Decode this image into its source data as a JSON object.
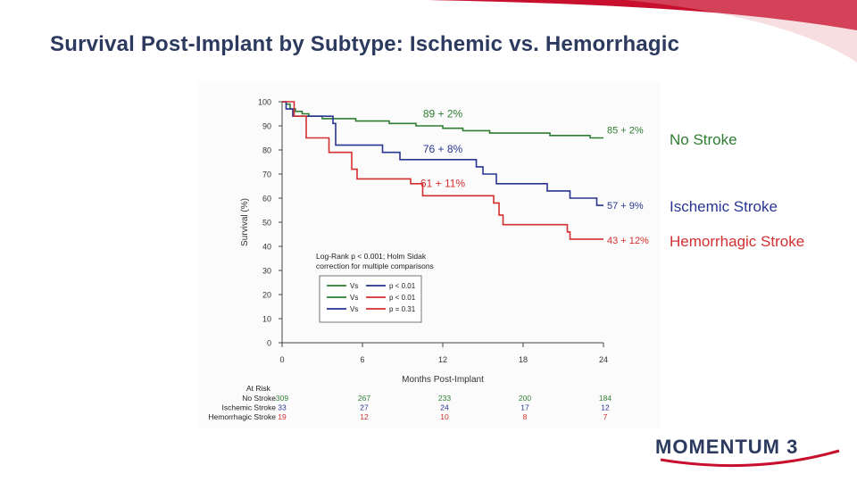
{
  "slide": {
    "title": "Survival Post-Implant by Subtype: Ischemic vs. Hemorrhagic",
    "logo_text": "MOMENTUM 3",
    "accent_color": "#c8102e",
    "logo_color": "#2b3a5e"
  },
  "chart_data": {
    "type": "line",
    "subtype": "kaplan-meier",
    "xlabel": "Months Post-Implant",
    "ylabel": "Survival (%)",
    "xlim": [
      0,
      24
    ],
    "ylim": [
      0,
      100
    ],
    "x_ticks": [
      0,
      6,
      12,
      18,
      24
    ],
    "y_ticks": [
      0,
      10,
      20,
      30,
      40,
      50,
      60,
      70,
      80,
      90,
      100
    ],
    "series": [
      {
        "name": "No Stroke",
        "color": "#2e7d32",
        "side_label_color": "#2e7d32",
        "steps": [
          [
            0,
            100
          ],
          [
            0.3,
            99
          ],
          [
            0.6,
            97
          ],
          [
            1.0,
            96
          ],
          [
            1.5,
            95
          ],
          [
            2.0,
            94
          ],
          [
            3.0,
            93
          ],
          [
            5.5,
            92
          ],
          [
            8.0,
            91
          ],
          [
            10.0,
            90
          ],
          [
            12.0,
            89
          ],
          [
            13.5,
            88
          ],
          [
            15.5,
            87
          ],
          [
            20.0,
            86
          ],
          [
            23.0,
            85
          ],
          [
            24.0,
            85
          ]
        ],
        "annotations": [
          {
            "text": "89 + 2%",
            "x": 12,
            "y": 89
          },
          {
            "text": "85 + 2%",
            "x": 24,
            "y": 85
          }
        ]
      },
      {
        "name": "Ischemic Stroke",
        "color": "#283593",
        "side_label_color": "#283593",
        "steps": [
          [
            0,
            100
          ],
          [
            0.3,
            97
          ],
          [
            0.8,
            94
          ],
          [
            3.8,
            91
          ],
          [
            4.0,
            82
          ],
          [
            7.5,
            79
          ],
          [
            8.8,
            76
          ],
          [
            12.0,
            76
          ],
          [
            14.5,
            73
          ],
          [
            15.0,
            70
          ],
          [
            16.0,
            66
          ],
          [
            19.8,
            63
          ],
          [
            21.5,
            60
          ],
          [
            23.5,
            57
          ],
          [
            24.0,
            57
          ]
        ],
        "annotations": [
          {
            "text": "76 + 8%",
            "x": 12,
            "y": 76
          },
          {
            "text": "57 + 9%",
            "x": 24,
            "y": 57
          }
        ]
      },
      {
        "name": "Hemorrhagic Stroke",
        "color": "#d32f2f",
        "side_label_color": "#d32f2f",
        "steps": [
          [
            0,
            100
          ],
          [
            0.9,
            94
          ],
          [
            1.8,
            85
          ],
          [
            3.5,
            79
          ],
          [
            5.2,
            72
          ],
          [
            5.6,
            68
          ],
          [
            9.6,
            66
          ],
          [
            10.5,
            61
          ],
          [
            15.8,
            58
          ],
          [
            16.2,
            53
          ],
          [
            16.5,
            49
          ],
          [
            21.3,
            46
          ],
          [
            21.5,
            43
          ],
          [
            24.0,
            43
          ]
        ],
        "annotations": [
          {
            "text": "61 + 11%",
            "x": 12,
            "y": 61
          },
          {
            "text": "43 + 12%",
            "x": 24,
            "y": 43
          }
        ]
      }
    ],
    "stats_text": [
      "Log-Rank p < 0.001; Holm Sidak",
      "correction for multiple comparisons"
    ],
    "comparisons": [
      {
        "a": "No Stroke",
        "b": "Ischemic Stroke",
        "vs": "Vs",
        "p": "p < 0.01"
      },
      {
        "a": "No Stroke",
        "b": "Hemorrhagic Stroke",
        "vs": "Vs",
        "p": "p < 0.01"
      },
      {
        "a": "Ischemic Stroke",
        "b": "Hemorrhagic Stroke",
        "vs": "Vs",
        "p": "p = 0.31"
      }
    ],
    "at_risk": {
      "title": "At Risk",
      "rows": [
        {
          "label": "No Stroke",
          "color": "#2e7d32",
          "values": [
            309,
            267,
            233,
            200,
            184
          ]
        },
        {
          "label": "Ischemic Stroke",
          "color": "#283593",
          "values": [
            33,
            27,
            24,
            17,
            12
          ]
        },
        {
          "label": "Hemorrhagic Stroke",
          "color": "#d32f2f",
          "values": [
            19,
            12,
            10,
            8,
            7
          ]
        }
      ]
    }
  }
}
